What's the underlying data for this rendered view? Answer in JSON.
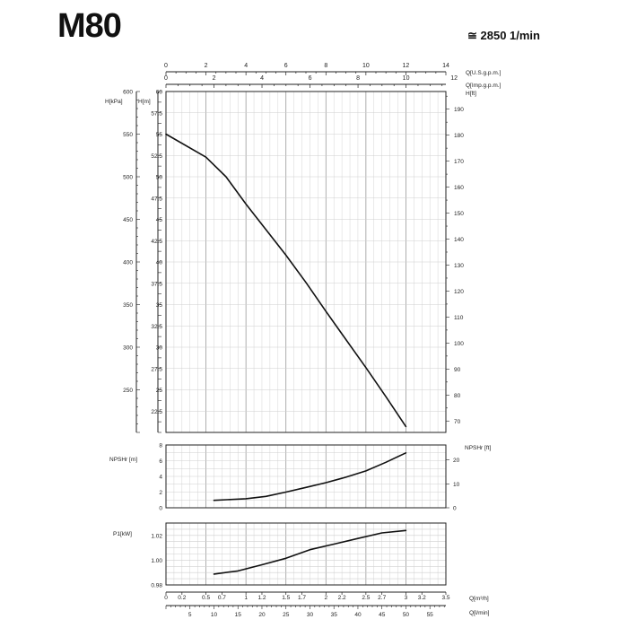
{
  "header": {
    "model": "M80",
    "speed": "≅ 2850 1/min"
  },
  "chart_data": [
    {
      "id": "head",
      "type": "line",
      "top_axes": [
        {
          "label": "Q[U.S.g.p.m.]",
          "range": [
            0,
            14.0
          ],
          "ticks": [
            2,
            4,
            6,
            8,
            10,
            12,
            14
          ]
        },
        {
          "label": "Q[Imp.g.p.m.]",
          "range": [
            0,
            11.66
          ],
          "ticks": [
            0,
            2,
            4,
            6,
            8,
            10,
            12
          ]
        }
      ],
      "left_axes": [
        {
          "label": "H[kPa]",
          "range": [
            200,
            600
          ],
          "ticks": [
            250,
            300,
            350,
            400,
            450,
            500,
            550,
            600
          ]
        },
        {
          "label": "H[m]",
          "range": [
            20,
            60
          ],
          "ticks": [
            22.5,
            25,
            27.5,
            30,
            32.5,
            35,
            37.5,
            40,
            42.5,
            45,
            47.5,
            50,
            52.5,
            55,
            57.5,
            60
          ],
          "tick_labels": [
            "22.5",
            "25",
            "27.5",
            "30",
            "32.5",
            "35",
            "37.5",
            "40",
            "42.5",
            "45",
            "47.5",
            "50",
            "52.5",
            "55",
            "57.5",
            "60"
          ]
        }
      ],
      "right_axis": {
        "label": "H[ft]",
        "range": [
          65.6,
          196.8
        ],
        "ticks": [
          70,
          80,
          90,
          100,
          110,
          120,
          130,
          140,
          150,
          160,
          170,
          180,
          190
        ]
      },
      "x": [
        0,
        0.5,
        0.75,
        1.0,
        1.25,
        1.5,
        1.75,
        2.0,
        2.25,
        2.5,
        2.75,
        3.0
      ],
      "y": [
        55,
        52.3,
        50,
        46.8,
        43.8,
        40.8,
        37.6,
        34.2,
        30.9,
        27.6,
        24.2,
        20.7
      ]
    },
    {
      "id": "npsh",
      "type": "line",
      "left_axis": {
        "label": "NPSHr [m]",
        "range": [
          0,
          8
        ],
        "ticks": [
          0,
          2,
          4,
          6,
          8
        ]
      },
      "right_axis": {
        "label": "NPSHr [ft]",
        "range": [
          0,
          26.24
        ],
        "ticks": [
          0,
          10,
          20
        ]
      },
      "x": [
        0.6,
        1.0,
        1.25,
        1.5,
        1.75,
        2.0,
        2.25,
        2.5,
        2.75,
        3.0
      ],
      "y": [
        0.95,
        1.15,
        1.45,
        2.0,
        2.6,
        3.2,
        3.9,
        4.7,
        5.8,
        7.0
      ]
    },
    {
      "id": "power",
      "type": "line",
      "left_axis": {
        "label": "P1[kW]",
        "range": [
          0.98,
          1.03
        ],
        "ticks": [
          0.98,
          1.0,
          1.02
        ],
        "tick_labels": [
          "0.98",
          "1.00",
          "1.02"
        ]
      },
      "x": [
        0.6,
        0.9,
        1.2,
        1.5,
        1.8,
        2.1,
        2.4,
        2.7,
        3.0
      ],
      "y": [
        0.9888,
        0.9913,
        0.9963,
        1.0015,
        1.0085,
        1.013,
        1.0175,
        1.022,
        1.024
      ]
    }
  ],
  "x_axes": [
    {
      "label": "Q[m³/h]",
      "range": [
        0,
        3.5
      ],
      "ticks": [
        0,
        0.2,
        0.5,
        0.7,
        1.0,
        1.2,
        1.5,
        1.7,
        2.0,
        2.2,
        2.5,
        2.7,
        3.0,
        3.2,
        3.5
      ],
      "tick_labels": [
        "0",
        "0.2",
        "0.5",
        "0.7",
        "1",
        "1.2",
        "1.5",
        "1.7",
        "2",
        "2.2",
        "2.5",
        "2.7",
        "3",
        "3.2",
        "3.5"
      ]
    },
    {
      "label": "Q[l/min]",
      "range": [
        0,
        58.33
      ],
      "ticks": [
        5,
        10,
        15,
        20,
        25,
        30,
        35,
        40,
        45,
        50,
        55
      ]
    }
  ],
  "top_axis_zero": "0"
}
